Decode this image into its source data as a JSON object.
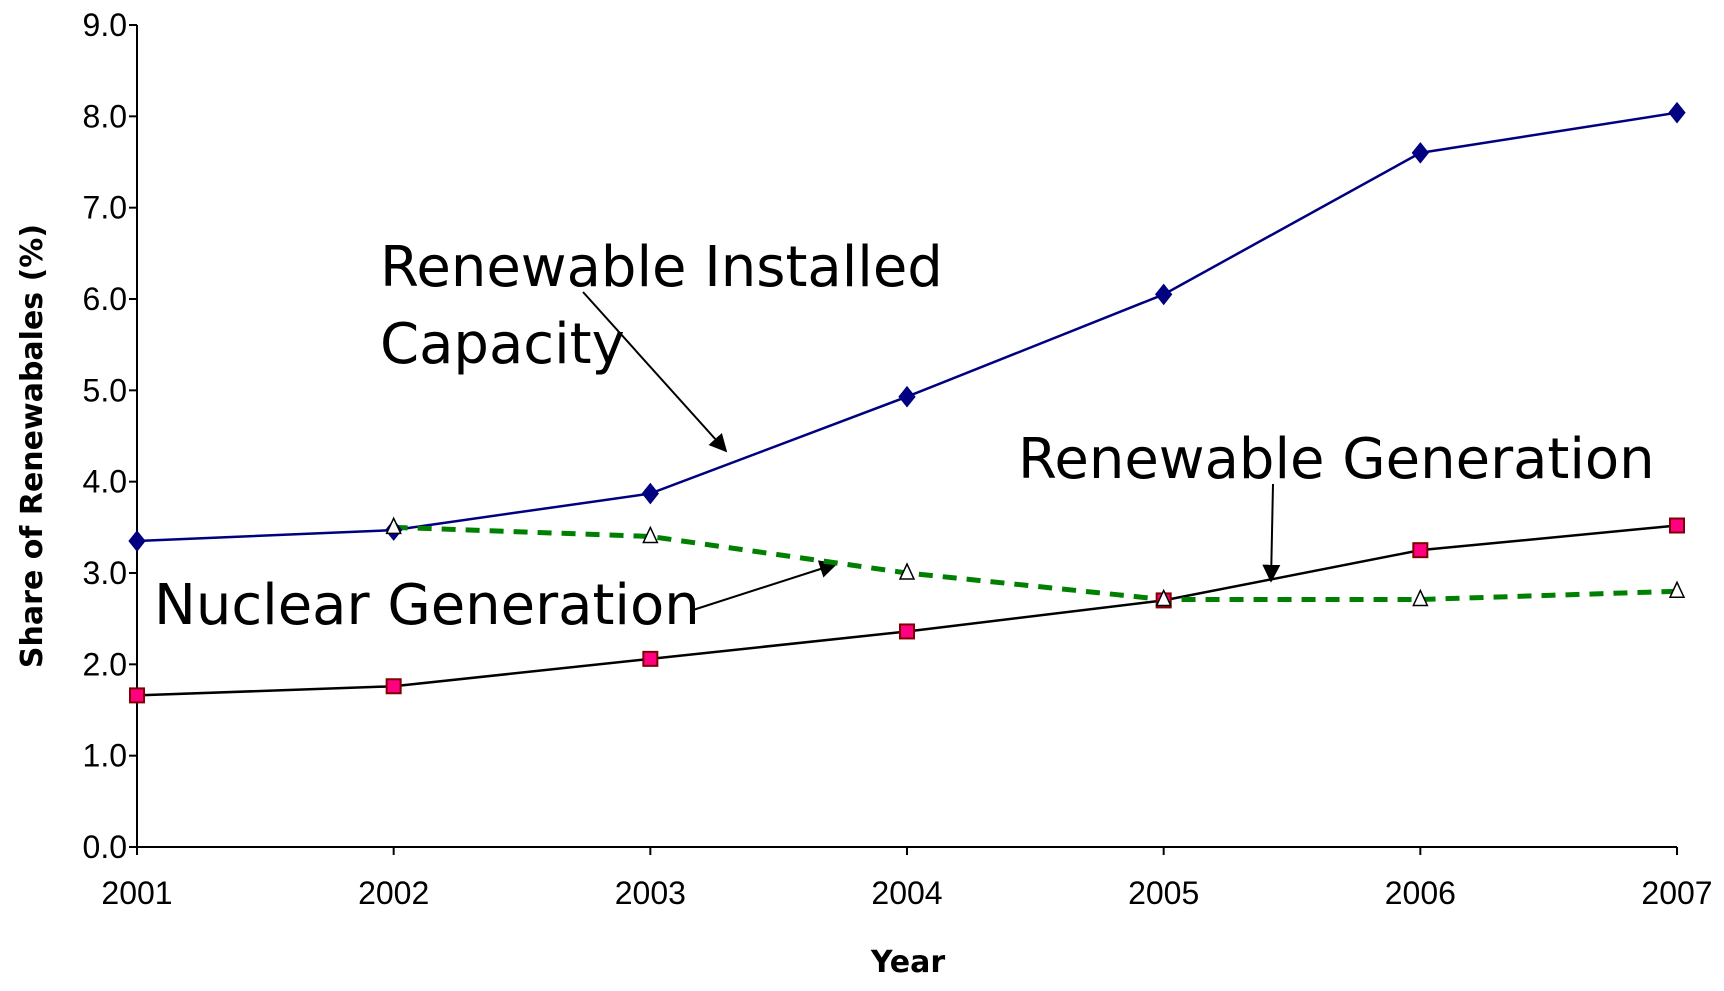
{
  "chart_data": {
    "type": "line",
    "xlabel": "Year",
    "ylabel": "Share of Renewabales (%)",
    "categories": [
      "2001",
      "2002",
      "2003",
      "2004",
      "2005",
      "2006",
      "2007"
    ],
    "ylim": [
      0,
      9
    ],
    "yticks": [
      {
        "value": 0,
        "label": "0.0"
      },
      {
        "value": 1,
        "label": "1.0"
      },
      {
        "value": 2,
        "label": "2.0"
      },
      {
        "value": 3,
        "label": "3.0"
      },
      {
        "value": 4,
        "label": "4.0"
      },
      {
        "value": 5,
        "label": "5.0"
      },
      {
        "value": 6,
        "label": "6.0"
      },
      {
        "value": 7,
        "label": "7.0"
      },
      {
        "value": 8,
        "label": "8.0"
      },
      {
        "value": 9,
        "label": "9.0"
      }
    ],
    "series": [
      {
        "color": "#000080",
        "values": [
          3.35,
          3.47,
          3.87,
          4.93,
          6.05,
          7.6,
          8.04
        ]
      },
      {
        "color": "#000000",
        "values": [
          1.66,
          1.76,
          2.06,
          2.36,
          2.7,
          3.25,
          3.52
        ]
      },
      {
        "color": "#008000",
        "values": [
          null,
          3.5,
          3.4,
          3.0,
          2.71,
          2.71,
          2.8
        ]
      }
    ],
    "annotations": [
      "Renewable Installed",
      "Capacity",
      "Renewable Generation",
      "Nuclear Generation"
    ]
  }
}
